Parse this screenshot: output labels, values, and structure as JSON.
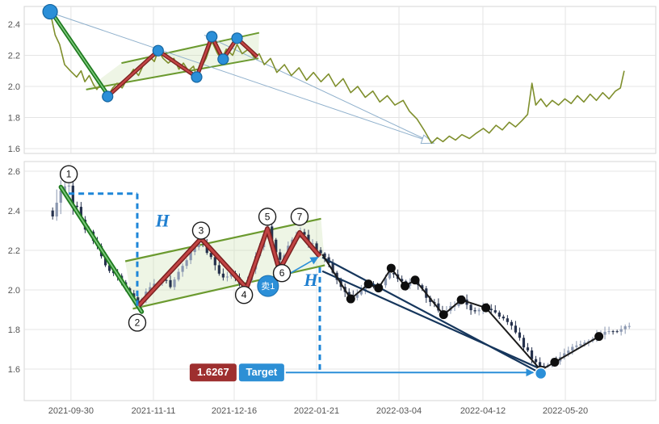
{
  "colors": {
    "grid": "#e4e4e4",
    "border": "#d6d6d6",
    "axis_text": "#555555",
    "olive": "#7f8f2d",
    "green_dark": "#1e7a1e",
    "green_light": "#7fc97f",
    "channel": "#6b9a2f",
    "channel_fill": "#cde3b4",
    "red_dark": "#7a2020",
    "red_light": "#c24444",
    "blue": "#2b8fd8",
    "blue_dark": "#1565a0",
    "dashed_blue": "#1e86d8",
    "navy": "#16365c",
    "black": "#111111",
    "proj": "#8fb0cc",
    "badge_red": "#9e2f2f",
    "badge_blue": "#2d8fd5",
    "candle_up": "#8a97b0",
    "candle_down": "#26324d"
  },
  "chart_data": [
    {
      "id": "overview-line-chart",
      "type": "line",
      "title": "",
      "ylim": [
        1.569,
        2.514
      ],
      "yticks": [
        {
          "v": 2.4,
          "label": "2.4"
        },
        {
          "v": 2.2,
          "label": "2.2"
        },
        {
          "v": 2.0,
          "label": "2.0"
        },
        {
          "v": 1.8,
          "label": "1.8"
        },
        {
          "v": 1.6,
          "label": "1.6"
        }
      ],
      "series": [
        {
          "name": "price",
          "points": [
            [
              0.041,
              2.48
            ],
            [
              0.049,
              2.33
            ],
            [
              0.056,
              2.27
            ],
            [
              0.064,
              2.14
            ],
            [
              0.073,
              2.1
            ],
            [
              0.083,
              2.06
            ],
            [
              0.09,
              2.1
            ],
            [
              0.096,
              2.03
            ],
            [
              0.103,
              2.07
            ],
            [
              0.11,
              2.01
            ],
            [
              0.115,
              1.98
            ],
            [
              0.122,
              2.02
            ],
            [
              0.127,
              1.97
            ],
            [
              0.132,
              1.935
            ],
            [
              0.14,
              1.99
            ],
            [
              0.147,
              2.02
            ],
            [
              0.155,
              1.99
            ],
            [
              0.165,
              2.06
            ],
            [
              0.173,
              2.11
            ],
            [
              0.181,
              2.07
            ],
            [
              0.19,
              2.15
            ],
            [
              0.199,
              2.19
            ],
            [
              0.206,
              2.16
            ],
            [
              0.212,
              2.23
            ],
            [
              0.22,
              2.18
            ],
            [
              0.228,
              2.15
            ],
            [
              0.237,
              2.18
            ],
            [
              0.245,
              2.11
            ],
            [
              0.252,
              2.15
            ],
            [
              0.26,
              2.1
            ],
            [
              0.268,
              2.13
            ],
            [
              0.273,
              2.06
            ],
            [
              0.28,
              2.12
            ],
            [
              0.288,
              2.18
            ],
            [
              0.297,
              2.29
            ],
            [
              0.305,
              2.22
            ],
            [
              0.312,
              2.17
            ],
            [
              0.32,
              2.24
            ],
            [
              0.33,
              2.2
            ],
            [
              0.337,
              2.27
            ],
            [
              0.345,
              2.21
            ],
            [
              0.355,
              2.24
            ],
            [
              0.365,
              2.18
            ],
            [
              0.372,
              2.21
            ],
            [
              0.38,
              2.14
            ],
            [
              0.39,
              2.18
            ],
            [
              0.4,
              2.09
            ],
            [
              0.412,
              2.14
            ],
            [
              0.423,
              2.07
            ],
            [
              0.435,
              2.12
            ],
            [
              0.447,
              2.04
            ],
            [
              0.458,
              2.09
            ],
            [
              0.47,
              2.03
            ],
            [
              0.482,
              2.08
            ],
            [
              0.493,
              2.0
            ],
            [
              0.505,
              2.05
            ],
            [
              0.517,
              1.96
            ],
            [
              0.528,
              2.0
            ],
            [
              0.54,
              1.93
            ],
            [
              0.552,
              1.97
            ],
            [
              0.563,
              1.9
            ],
            [
              0.575,
              1.94
            ],
            [
              0.587,
              1.88
            ],
            [
              0.6,
              1.91
            ],
            [
              0.61,
              1.84
            ],
            [
              0.622,
              1.79
            ],
            [
              0.633,
              1.72
            ],
            [
              0.645,
              1.635
            ],
            [
              0.654,
              1.67
            ],
            [
              0.663,
              1.645
            ],
            [
              0.673,
              1.68
            ],
            [
              0.683,
              1.655
            ],
            [
              0.693,
              1.69
            ],
            [
              0.705,
              1.665
            ],
            [
              0.716,
              1.7
            ],
            [
              0.727,
              1.73
            ],
            [
              0.736,
              1.7
            ],
            [
              0.747,
              1.75
            ],
            [
              0.757,
              1.72
            ],
            [
              0.768,
              1.77
            ],
            [
              0.778,
              1.74
            ],
            [
              0.788,
              1.78
            ],
            [
              0.797,
              1.82
            ],
            [
              0.804,
              2.02
            ],
            [
              0.81,
              1.88
            ],
            [
              0.818,
              1.92
            ],
            [
              0.827,
              1.87
            ],
            [
              0.836,
              1.91
            ],
            [
              0.846,
              1.88
            ],
            [
              0.856,
              1.92
            ],
            [
              0.866,
              1.89
            ],
            [
              0.876,
              1.94
            ],
            [
              0.886,
              1.9
            ],
            [
              0.896,
              1.95
            ],
            [
              0.906,
              1.91
            ],
            [
              0.916,
              1.96
            ],
            [
              0.926,
              1.92
            ],
            [
              0.936,
              1.97
            ],
            [
              0.944,
              1.99
            ],
            [
              0.95,
              2.1
            ]
          ]
        }
      ],
      "annotations": {
        "trendline": {
          "from": [
            0.041,
            2.49
          ],
          "to": [
            0.135,
            1.93
          ]
        },
        "channel": {
          "top": [
            [
              0.154,
              2.15
            ],
            [
              0.372,
              2.345
            ]
          ],
          "bottom": [
            [
              0.098,
              1.98
            ],
            [
              0.371,
              2.18
            ]
          ]
        },
        "zigzag": [
          [
            0.132,
            1.935
          ],
          [
            0.212,
            2.23
          ],
          [
            0.273,
            2.06
          ],
          [
            0.297,
            2.32
          ],
          [
            0.315,
            2.175
          ],
          [
            0.337,
            2.31
          ],
          [
            0.369,
            2.19
          ]
        ],
        "dots": [
          [
            0.041,
            2.48
          ],
          [
            0.132,
            1.935
          ],
          [
            0.212,
            2.23
          ],
          [
            0.273,
            2.06
          ],
          [
            0.297,
            2.32
          ],
          [
            0.315,
            2.175
          ],
          [
            0.337,
            2.31
          ]
        ],
        "projection": {
          "lines": [
            [
              [
                0.045,
                2.47
              ],
              [
                0.643,
                1.645
              ]
            ],
            [
              [
                0.285,
                2.33
              ],
              [
                0.643,
                1.645
              ]
            ]
          ],
          "arrow_at": [
            0.645,
            1.64
          ]
        }
      }
    },
    {
      "id": "candlestick-chart",
      "type": "candlestick",
      "title": "",
      "ylim": [
        1.441,
        2.649
      ],
      "yticks": [
        {
          "v": 2.6,
          "label": "2.6"
        },
        {
          "v": 2.4,
          "label": "2.4"
        },
        {
          "v": 2.2,
          "label": "2.2"
        },
        {
          "v": 2.0,
          "label": "2.0"
        },
        {
          "v": 1.8,
          "label": "1.8"
        },
        {
          "v": 1.6,
          "label": "1.6"
        }
      ],
      "xticks": [
        {
          "f": 0.074,
          "label": "2021-09-30"
        },
        {
          "f": 0.2046,
          "label": "2021-11-11"
        },
        {
          "f": 0.3325,
          "label": "2021-12-16"
        },
        {
          "f": 0.4629,
          "label": "2022-01-21"
        },
        {
          "f": 0.5934,
          "label": "2022-03-04"
        },
        {
          "f": 0.7263,
          "label": "2022-04-12"
        },
        {
          "f": 0.8568,
          "label": "2022-05-20"
        }
      ],
      "price_path": [
        [
          0.045,
          2.4
        ],
        [
          0.058,
          2.5
        ],
        [
          0.07,
          2.53
        ],
        [
          0.08,
          2.42
        ],
        [
          0.092,
          2.33
        ],
        [
          0.105,
          2.28
        ],
        [
          0.118,
          2.2
        ],
        [
          0.13,
          2.12
        ],
        [
          0.145,
          2.08
        ],
        [
          0.158,
          2.02
        ],
        [
          0.17,
          1.97
        ],
        [
          0.179,
          1.93
        ],
        [
          0.192,
          1.99
        ],
        [
          0.205,
          2.03
        ],
        [
          0.22,
          2.06
        ],
        [
          0.232,
          2.02
        ],
        [
          0.245,
          2.1
        ],
        [
          0.258,
          2.16
        ],
        [
          0.27,
          2.22
        ],
        [
          0.28,
          2.26
        ],
        [
          0.292,
          2.18
        ],
        [
          0.305,
          2.1
        ],
        [
          0.318,
          2.06
        ],
        [
          0.33,
          2.08
        ],
        [
          0.34,
          2.03
        ],
        [
          0.352,
          2.04
        ],
        [
          0.362,
          2.12
        ],
        [
          0.372,
          2.22
        ],
        [
          0.385,
          2.32
        ],
        [
          0.395,
          2.22
        ],
        [
          0.404,
          2.14
        ],
        [
          0.415,
          2.2
        ],
        [
          0.425,
          2.26
        ],
        [
          0.436,
          2.3
        ],
        [
          0.448,
          2.25
        ],
        [
          0.458,
          2.22
        ],
        [
          0.468,
          2.2
        ],
        [
          0.48,
          2.15
        ],
        [
          0.495,
          2.05
        ],
        [
          0.517,
          1.96
        ],
        [
          0.532,
          2.0
        ],
        [
          0.545,
          2.03
        ],
        [
          0.561,
          2.01
        ],
        [
          0.581,
          2.1
        ],
        [
          0.603,
          2.02
        ],
        [
          0.619,
          2.05
        ],
        [
          0.64,
          1.95
        ],
        [
          0.664,
          1.88
        ],
        [
          0.68,
          1.92
        ],
        [
          0.692,
          1.95
        ],
        [
          0.71,
          1.9
        ],
        [
          0.731,
          1.91
        ],
        [
          0.75,
          1.88
        ],
        [
          0.77,
          1.82
        ],
        [
          0.79,
          1.72
        ],
        [
          0.805,
          1.65
        ],
        [
          0.818,
          1.6
        ],
        [
          0.83,
          1.62
        ],
        [
          0.84,
          1.64
        ],
        [
          0.855,
          1.68
        ],
        [
          0.87,
          1.72
        ],
        [
          0.885,
          1.74
        ],
        [
          0.9,
          1.76
        ],
        [
          0.91,
          1.78
        ],
        [
          0.925,
          1.79
        ],
        [
          0.94,
          1.8
        ],
        [
          0.958,
          1.81
        ]
      ],
      "annotations": {
        "trendline": {
          "from": [
            0.058,
            2.52
          ],
          "to": [
            0.186,
            1.89
          ]
        },
        "channel": {
          "top": [
            [
              0.16,
              2.145
            ],
            [
              0.47,
              2.36
            ]
          ],
          "bottom": [
            [
              0.172,
              1.905
            ],
            [
              0.476,
              2.125
            ]
          ]
        },
        "zigzag": [
          [
            0.181,
            1.92
          ],
          [
            0.28,
            2.26
          ],
          [
            0.352,
            2.01
          ],
          [
            0.385,
            2.31
          ],
          [
            0.404,
            2.1
          ],
          [
            0.436,
            2.29
          ],
          [
            0.468,
            2.17
          ]
        ],
        "wave_points": [
          {
            "label": "1",
            "at": [
              0.0705,
              2.585
            ]
          },
          {
            "label": "2",
            "at": [
              0.179,
              1.835
            ]
          },
          {
            "label": "3",
            "at": [
              0.28,
              2.3
            ]
          },
          {
            "label": "4",
            "at": [
              0.348,
              1.975
            ]
          },
          {
            "label": "5",
            "at": [
              0.385,
              2.37
            ]
          },
          {
            "label": "6",
            "at": [
              0.408,
              2.085
            ]
          },
          {
            "label": "7",
            "at": [
              0.436,
              2.37
            ]
          }
        ],
        "measures": [
          {
            "label": "H",
            "label_at": [
              0.208,
              2.32
            ],
            "segments": [
              [
                [
                  0.0705,
                  2.487
                ],
                [
                  0.179,
                  2.487
                ]
              ],
              [
                [
                  0.179,
                  2.487
                ],
                [
                  0.179,
                  1.92
                ]
              ]
            ]
          },
          {
            "label": "H",
            "label_at": [
              0.443,
              2.02
            ],
            "segments": [
              [
                [
                  0.468,
                  2.115
                ],
                [
                  0.468,
                  1.578
                ]
              ]
            ]
          }
        ],
        "sell_marker": {
          "label": "卖1",
          "at": [
            0.386,
            2.02
          ],
          "arrow_to": [
            0.465,
            2.165
          ]
        },
        "downtrend_lines": [
          [
            [
              0.472,
              2.165
            ],
            [
              0.82,
              1.575
            ]
          ],
          [
            [
              0.472,
              2.095
            ],
            [
              0.818,
              1.6
            ]
          ]
        ],
        "swing_line": [
          [
            0.472,
            2.18
          ],
          [
            0.517,
            1.955
          ],
          [
            0.545,
            2.03
          ],
          [
            0.561,
            2.01
          ],
          [
            0.581,
            2.11
          ],
          [
            0.603,
            2.02
          ],
          [
            0.619,
            2.05
          ],
          [
            0.664,
            1.875
          ],
          [
            0.692,
            1.95
          ],
          [
            0.731,
            1.91
          ],
          [
            0.818,
            1.595
          ],
          [
            0.84,
            1.635
          ],
          [
            0.91,
            1.765
          ]
        ],
        "target": {
          "price_label": "1.6267",
          "button_label": "Target",
          "at": [
            0.262,
            1.583
          ],
          "arrow_end": [
            0.806,
            1.583
          ],
          "end_dot": [
            0.818,
            1.578
          ]
        }
      }
    }
  ]
}
